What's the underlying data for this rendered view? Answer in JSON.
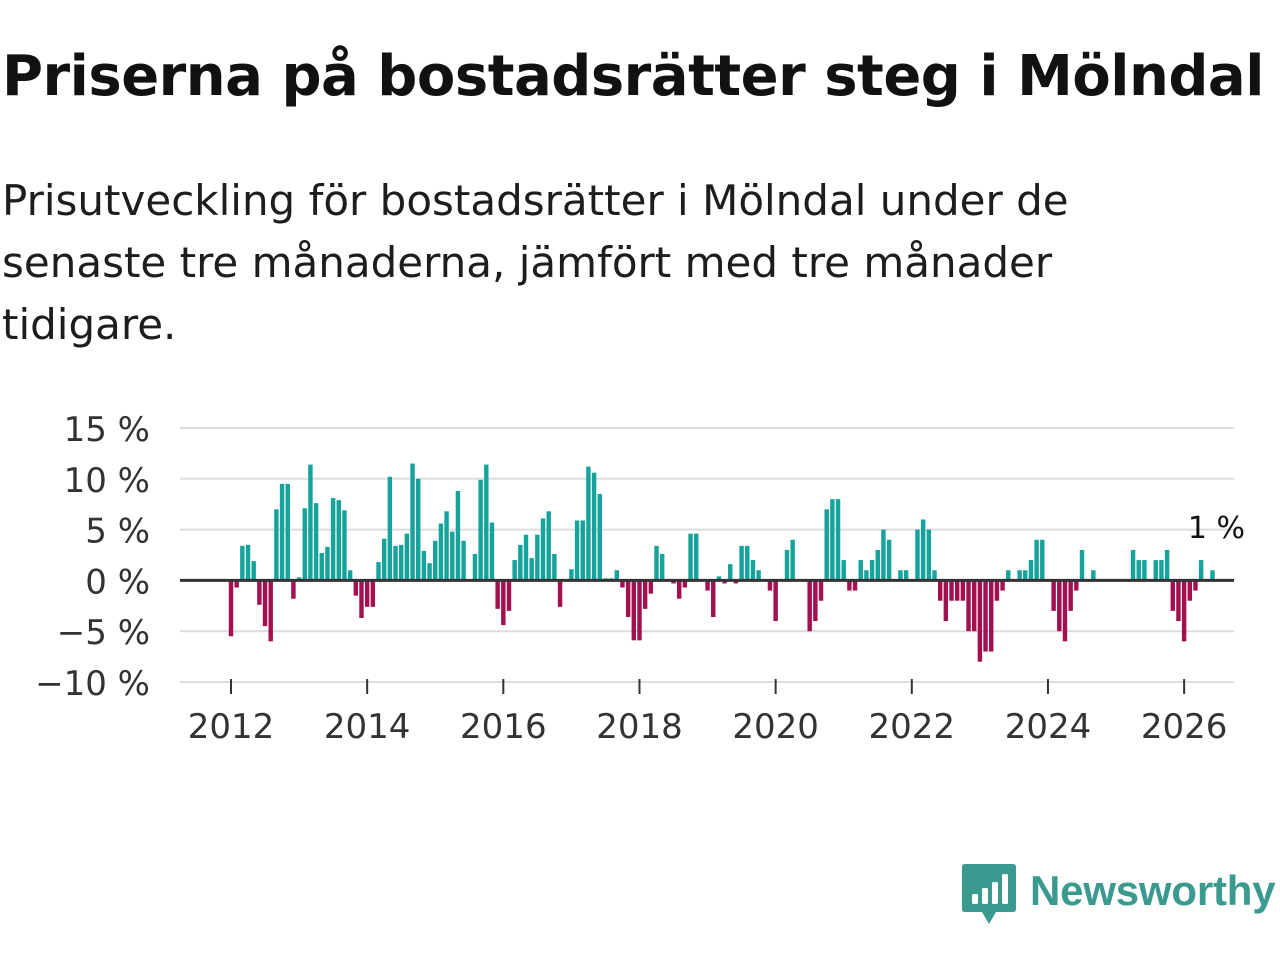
{
  "header": {
    "title": "Priserna på bostadsrätter steg i Mölndal",
    "subtitle": "Prisutveckling för bostadsrätter i Mölndal under de senaste tre månaderna, jämfört med tre månader tidigare."
  },
  "brand": {
    "name": "Newsworthy",
    "icon": "newsworthy-logo-icon",
    "color": "#3a9a8f"
  },
  "chart_data": {
    "type": "bar",
    "title": "Priserna på bostadsrätter steg i Mölndal",
    "subtitle": "Prisutveckling för bostadsrätter i Mölndal under de senaste tre månaderna, jämfört med tre månader tidigare.",
    "xlabel": "",
    "ylabel": "",
    "unit": "%",
    "ylim": [
      -10,
      15
    ],
    "yticks": [
      15,
      10,
      5,
      0,
      -5,
      -10
    ],
    "ytick_labels": [
      "15 %",
      "10 %",
      "5 %",
      "0 %",
      "−5 %",
      "−10 %"
    ],
    "xticks": [
      2012,
      2014,
      2016,
      2018,
      2020,
      2022,
      2024,
      2026
    ],
    "xtick_labels": [
      "2012",
      "2014",
      "2016",
      "2018",
      "2020",
      "2022",
      "2024",
      "2026"
    ],
    "grid": true,
    "x_start": "2012-01",
    "x_interval": "month",
    "colors": {
      "positive": "#16a39b",
      "negative": "#a31050",
      "zero_line": "#333333",
      "grid": "#dddddd"
    },
    "values": [
      -5.5,
      -0.7,
      3.4,
      3.5,
      1.9,
      -2.4,
      -4.5,
      -6.0,
      7.0,
      9.5,
      9.5,
      -1.8,
      0.3,
      7.1,
      11.4,
      7.6,
      2.7,
      3.3,
      8.1,
      7.9,
      6.9,
      1.0,
      -1.5,
      -3.7,
      -2.6,
      -2.6,
      1.8,
      4.1,
      10.2,
      3.4,
      3.5,
      4.6,
      11.5,
      10.0,
      2.9,
      1.7,
      3.9,
      5.6,
      6.8,
      4.8,
      8.8,
      3.9,
      0.0,
      2.6,
      9.9,
      11.4,
      5.7,
      -2.8,
      -4.4,
      -3.0,
      2.0,
      3.5,
      4.5,
      2.2,
      4.5,
      6.1,
      6.8,
      2.6,
      -2.6,
      0.0,
      1.1,
      5.9,
      5.9,
      11.2,
      10.6,
      8.5,
      0.2,
      0.2,
      1.0,
      -0.7,
      -3.6,
      -5.9,
      -5.9,
      -2.8,
      -1.3,
      3.4,
      2.6,
      0.0,
      -0.3,
      -1.8,
      -0.7,
      4.6,
      4.6,
      0.0,
      -1.0,
      -3.6,
      0.4,
      -0.3,
      1.6,
      -0.3,
      3.4,
      3.4,
      2.0,
      1.0,
      0.0,
      -1.0,
      -4.0,
      0.0,
      3.0,
      4.0,
      0.0,
      0.0,
      -5.0,
      -4.0,
      -2.0,
      7.0,
      8.0,
      8.0,
      2.0,
      -1.0,
      -1.0,
      2.0,
      1.0,
      2.0,
      3.0,
      5.0,
      4.0,
      0.0,
      1.0,
      1.0,
      0.0,
      5.0,
      6.0,
      5.0,
      1.0,
      -2.0,
      -4.0,
      -2.0,
      -2.0,
      -2.0,
      -5.0,
      -5.0,
      -8.0,
      -7.0,
      -7.0,
      -2.0,
      -1.0,
      1.0,
      0.0,
      1.0,
      1.0,
      2.0,
      4.0,
      4.0,
      0.0,
      -3.0,
      -5.0,
      -6.0,
      -3.0,
      -1.0,
      3.0,
      0.0,
      1.0,
      0.0,
      0.0,
      0.0,
      0.0,
      0.0,
      0.0,
      3.0,
      2.0,
      2.0,
      0.0,
      2.0,
      2.0,
      3.0,
      -3.0,
      -4.0,
      -6.0,
      -2.0,
      -1.0,
      2.0,
      0.0,
      1.0
    ],
    "annotation": {
      "text": "1 %",
      "value": 1.0
    }
  }
}
